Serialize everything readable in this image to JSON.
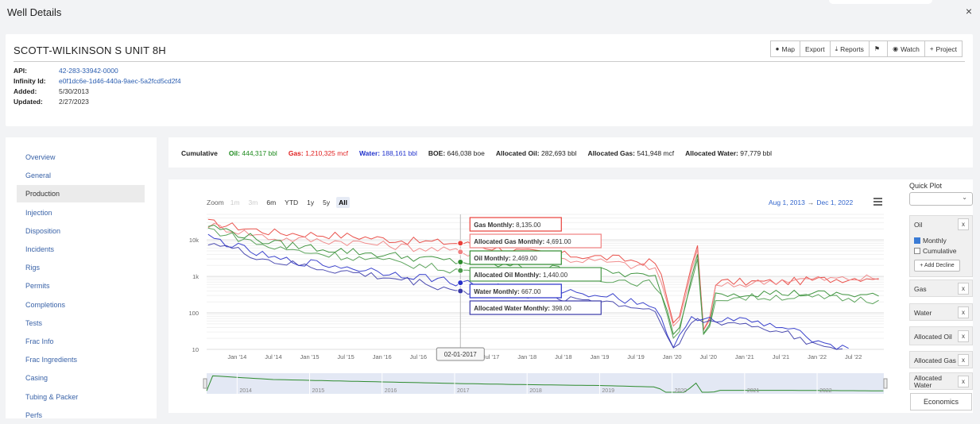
{
  "modal": {
    "title": "Well Details",
    "close": "×"
  },
  "well": {
    "name": "SCOTT-WILKINSON S UNIT 8H",
    "meta": [
      {
        "label": "API:",
        "value": "42-283-33942-0000",
        "link": true
      },
      {
        "label": "Infinity Id:",
        "value": "e0f1dc6e-1d46-440a-9aec-5a2fcd5cd2f4",
        "link": true
      },
      {
        "label": "Added:",
        "value": "5/30/2013",
        "link": false
      },
      {
        "label": "Updated:",
        "value": "2/27/2023",
        "link": false
      }
    ]
  },
  "toolbar": {
    "map": "Map",
    "export": "Export",
    "reports": "Reports",
    "flag": "",
    "watch": "Watch",
    "project": "Project"
  },
  "sidebar": {
    "items": [
      "Overview",
      "General",
      "Production",
      "Injection",
      "Disposition",
      "Incidents",
      "Rigs",
      "Permits",
      "Completions",
      "Tests",
      "Frac Info",
      "Frac Ingredients",
      "Casing",
      "Tubing & Packer",
      "Perfs"
    ],
    "active": "Production"
  },
  "cumulative": {
    "label": "Cumulative",
    "oil_label": "Oil:",
    "oil_value": "444,317 bbl",
    "gas_label": "Gas:",
    "gas_value": "1,210,325 mcf",
    "water_label": "Water:",
    "water_value": "188,161 bbl",
    "boe_label": "BOE:",
    "boe_value": "646,038 boe",
    "aoil_label": "Allocated Oil:",
    "aoil_value": "282,693 bbl",
    "agas_label": "Allocated Gas:",
    "agas_value": "541,948 mcf",
    "awater_label": "Allocated Water:",
    "awater_value": "97,779 bbl",
    "colors": {
      "oil": "#1e8a1e",
      "gas": "#e02020",
      "water": "#2233cc"
    }
  },
  "chart_controls": {
    "zoom_label": "Zoom",
    "zoom_buttons": [
      "1m",
      "3m",
      "6m",
      "YTD",
      "1y",
      "5y",
      "All"
    ],
    "zoom_selected": "All",
    "range_from": "Aug 1, 2013",
    "range_arrow": "→",
    "range_to": "Dec 1, 2022"
  },
  "quick_plot": {
    "title": "Quick Plot",
    "select_value": "",
    "items": [
      "Oil",
      "Gas",
      "Water",
      "Allocated Oil",
      "Allocated Gas",
      "Allocated Water"
    ],
    "monthly": "Monthly",
    "cumulative": "Cumulative",
    "add_decline": "+ Add Decline",
    "economics": "Economics"
  },
  "chart_data": {
    "type": "line",
    "y_scale": "log",
    "ylim": [
      10,
      50000
    ],
    "y_ticks": [
      "10k",
      "1k",
      "100",
      "10"
    ],
    "x_ticks": [
      "Jan '14",
      "Jul '14",
      "Jan '15",
      "Jul '15",
      "Jan '16",
      "Jul '16",
      "Jan '17",
      "Jul '17",
      "Jan '18",
      "Jul '18",
      "Jan '19",
      "Jul '19",
      "Jan '20",
      "Jul '20",
      "Jan '21",
      "Jul '21",
      "Jan '22",
      "Jul '22"
    ],
    "navigator_ticks": [
      "2014",
      "2015",
      "2016",
      "2017",
      "2018",
      "2019",
      "2020",
      "2021",
      "2022"
    ],
    "crosshair_label": "02-01-2017",
    "x_range": [
      "2013-08-01",
      "2022-12-01"
    ],
    "series": [
      {
        "name": "Gas Monthly",
        "color": "#e8403a",
        "tooltip_value": "8,135.00",
        "anchors": [
          [
            2013.6,
            30000
          ],
          [
            2014.5,
            16000
          ],
          [
            2015.5,
            13000
          ],
          [
            2016.5,
            9000
          ],
          [
            2017.08,
            8135
          ],
          [
            2018.0,
            4500
          ],
          [
            2019.0,
            3400
          ],
          [
            2019.8,
            2300
          ],
          [
            2020.05,
            30
          ],
          [
            2020.25,
            1500
          ],
          [
            2020.35,
            7000
          ],
          [
            2020.45,
            12
          ],
          [
            2020.6,
            700
          ],
          [
            2021.5,
            700
          ],
          [
            2022.9,
            1000
          ]
        ]
      },
      {
        "name": "Allocated Gas Monthly",
        "color": "#f08080",
        "tooltip_value": "4,691.00",
        "anchors": [
          [
            2013.6,
            26000
          ],
          [
            2014.5,
            11000
          ],
          [
            2015.5,
            9000
          ],
          [
            2016.5,
            6000
          ],
          [
            2017.08,
            4691
          ],
          [
            2018.0,
            3300
          ],
          [
            2019.0,
            2600
          ],
          [
            2019.8,
            1600
          ],
          [
            2020.05,
            25
          ],
          [
            2020.25,
            1100
          ],
          [
            2020.35,
            5500
          ],
          [
            2020.45,
            12
          ],
          [
            2020.6,
            500
          ],
          [
            2021.5,
            800
          ],
          [
            2022.9,
            900
          ]
        ]
      },
      {
        "name": "Oil Monthly",
        "color": "#2e8b2e",
        "tooltip_value": "2,469.00",
        "anchors": [
          [
            2013.6,
            25000
          ],
          [
            2014.5,
            8000
          ],
          [
            2015.5,
            5000
          ],
          [
            2016.5,
            3200
          ],
          [
            2017.08,
            2469
          ],
          [
            2018.0,
            1800
          ],
          [
            2019.0,
            1400
          ],
          [
            2019.8,
            900
          ],
          [
            2020.05,
            15
          ],
          [
            2020.25,
            700
          ],
          [
            2020.35,
            4000
          ],
          [
            2020.45,
            10
          ],
          [
            2020.6,
            350
          ],
          [
            2021.5,
            350
          ],
          [
            2022.9,
            300
          ]
        ]
      },
      {
        "name": "Allocated Oil Monthly",
        "color": "#4a9a4a",
        "tooltip_value": "1,440.00",
        "anchors": [
          [
            2013.6,
            20000
          ],
          [
            2014.5,
            6000
          ],
          [
            2015.5,
            3500
          ],
          [
            2016.5,
            2000
          ],
          [
            2017.08,
            1440
          ],
          [
            2018.0,
            1100
          ],
          [
            2019.0,
            900
          ],
          [
            2019.8,
            600
          ],
          [
            2020.05,
            12
          ],
          [
            2020.25,
            500
          ],
          [
            2020.35,
            3000
          ],
          [
            2020.45,
            10
          ],
          [
            2020.6,
            250
          ],
          [
            2021.5,
            280
          ],
          [
            2022.9,
            220
          ]
        ]
      },
      {
        "name": "Water Monthly",
        "color": "#2730c8",
        "tooltip_value": "667.00",
        "anchors": [
          [
            2013.6,
            12000
          ],
          [
            2014.5,
            3000
          ],
          [
            2015.5,
            1800
          ],
          [
            2016.5,
            1000
          ],
          [
            2017.08,
            667
          ],
          [
            2018.0,
            450
          ],
          [
            2019.0,
            330
          ],
          [
            2019.8,
            150
          ],
          [
            2020.0,
            10
          ],
          [
            2020.3,
            80
          ],
          [
            2021.0,
            60
          ],
          [
            2021.5,
            40
          ],
          [
            2022.1,
            15
          ],
          [
            2022.5,
            10
          ]
        ]
      },
      {
        "name": "Allocated Water Monthly",
        "color": "#3a3aa8",
        "tooltip_value": "398.00",
        "anchors": [
          [
            2013.6,
            9000
          ],
          [
            2014.5,
            2500
          ],
          [
            2015.5,
            1300
          ],
          [
            2016.5,
            700
          ],
          [
            2017.08,
            398
          ],
          [
            2018.0,
            300
          ],
          [
            2019.0,
            220
          ],
          [
            2019.8,
            110
          ],
          [
            2020.0,
            10
          ],
          [
            2020.3,
            60
          ],
          [
            2021.0,
            50
          ],
          [
            2021.5,
            30
          ],
          [
            2022.1,
            12
          ],
          [
            2022.4,
            10
          ]
        ]
      }
    ]
  }
}
